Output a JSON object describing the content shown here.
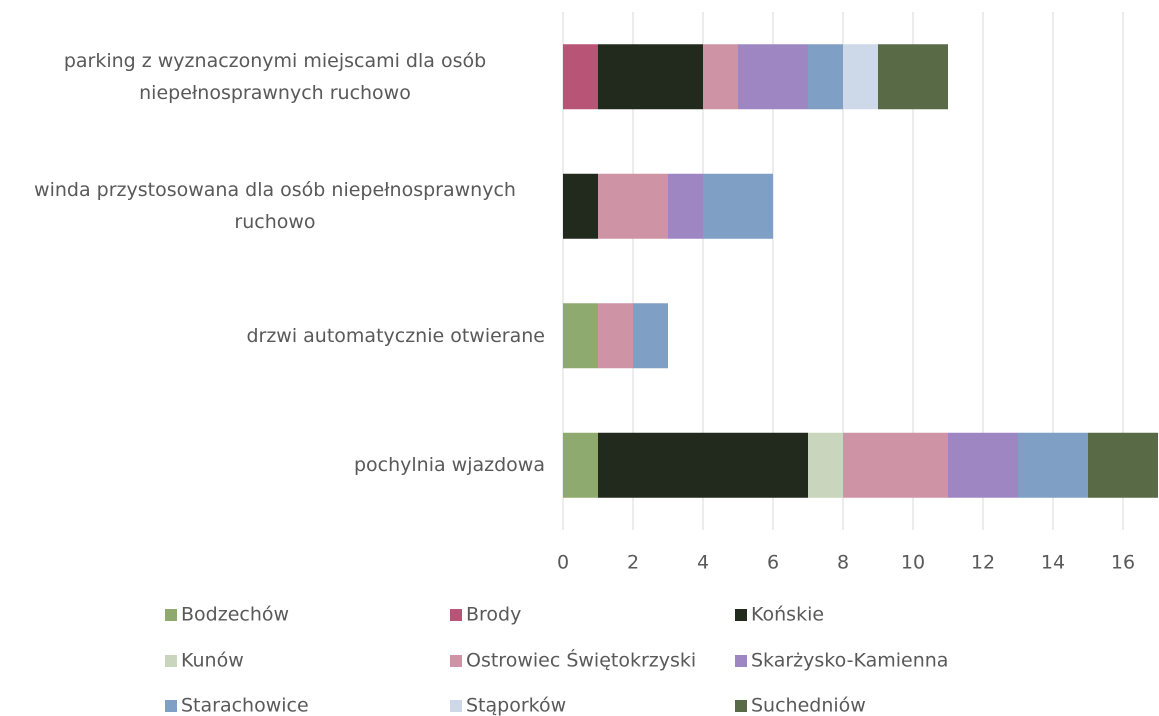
{
  "chart_data": {
    "type": "stacked_barh",
    "categories": [
      "parking z wyznaczonymi miejscami dla osób niepełnosprawnych ruchowo",
      "winda przystosowana dla osób niepełnosprawnych ruchowo",
      "drzwi automatycznie otwierane",
      "pochylnia wjazdowa"
    ],
    "series": [
      {
        "name": "Bodzechów",
        "color": "#8faa6e",
        "values": [
          0,
          0,
          1,
          1
        ]
      },
      {
        "name": "Brody",
        "color": "#b85475",
        "values": [
          1,
          0,
          0,
          0
        ]
      },
      {
        "name": "Końskie",
        "color": "#222a1e",
        "values": [
          3,
          1,
          0,
          6
        ]
      },
      {
        "name": "Kunów",
        "color": "#c9d5bc",
        "values": [
          0,
          0,
          0,
          1
        ]
      },
      {
        "name": "Ostrowiec Świętokrzyski",
        "color": "#cf93a6",
        "values": [
          1,
          2,
          1,
          3
        ]
      },
      {
        "name": "Skarżysko-Kamienna",
        "color": "#9e86c3",
        "values": [
          2,
          1,
          0,
          2
        ]
      },
      {
        "name": "Starachowice",
        "color": "#7f9fc5",
        "values": [
          1,
          2,
          1,
          2
        ]
      },
      {
        "name": "Stąporków",
        "color": "#cdd8e8",
        "values": [
          1,
          0,
          0,
          0
        ]
      },
      {
        "name": "Suchedniów",
        "color": "#586a46",
        "values": [
          2,
          0,
          0,
          2
        ]
      }
    ],
    "xlim": [
      0,
      17
    ],
    "xticks": [
      0,
      2,
      4,
      6,
      8,
      10,
      12,
      14,
      16
    ],
    "grid": true,
    "legend": "bottom"
  }
}
